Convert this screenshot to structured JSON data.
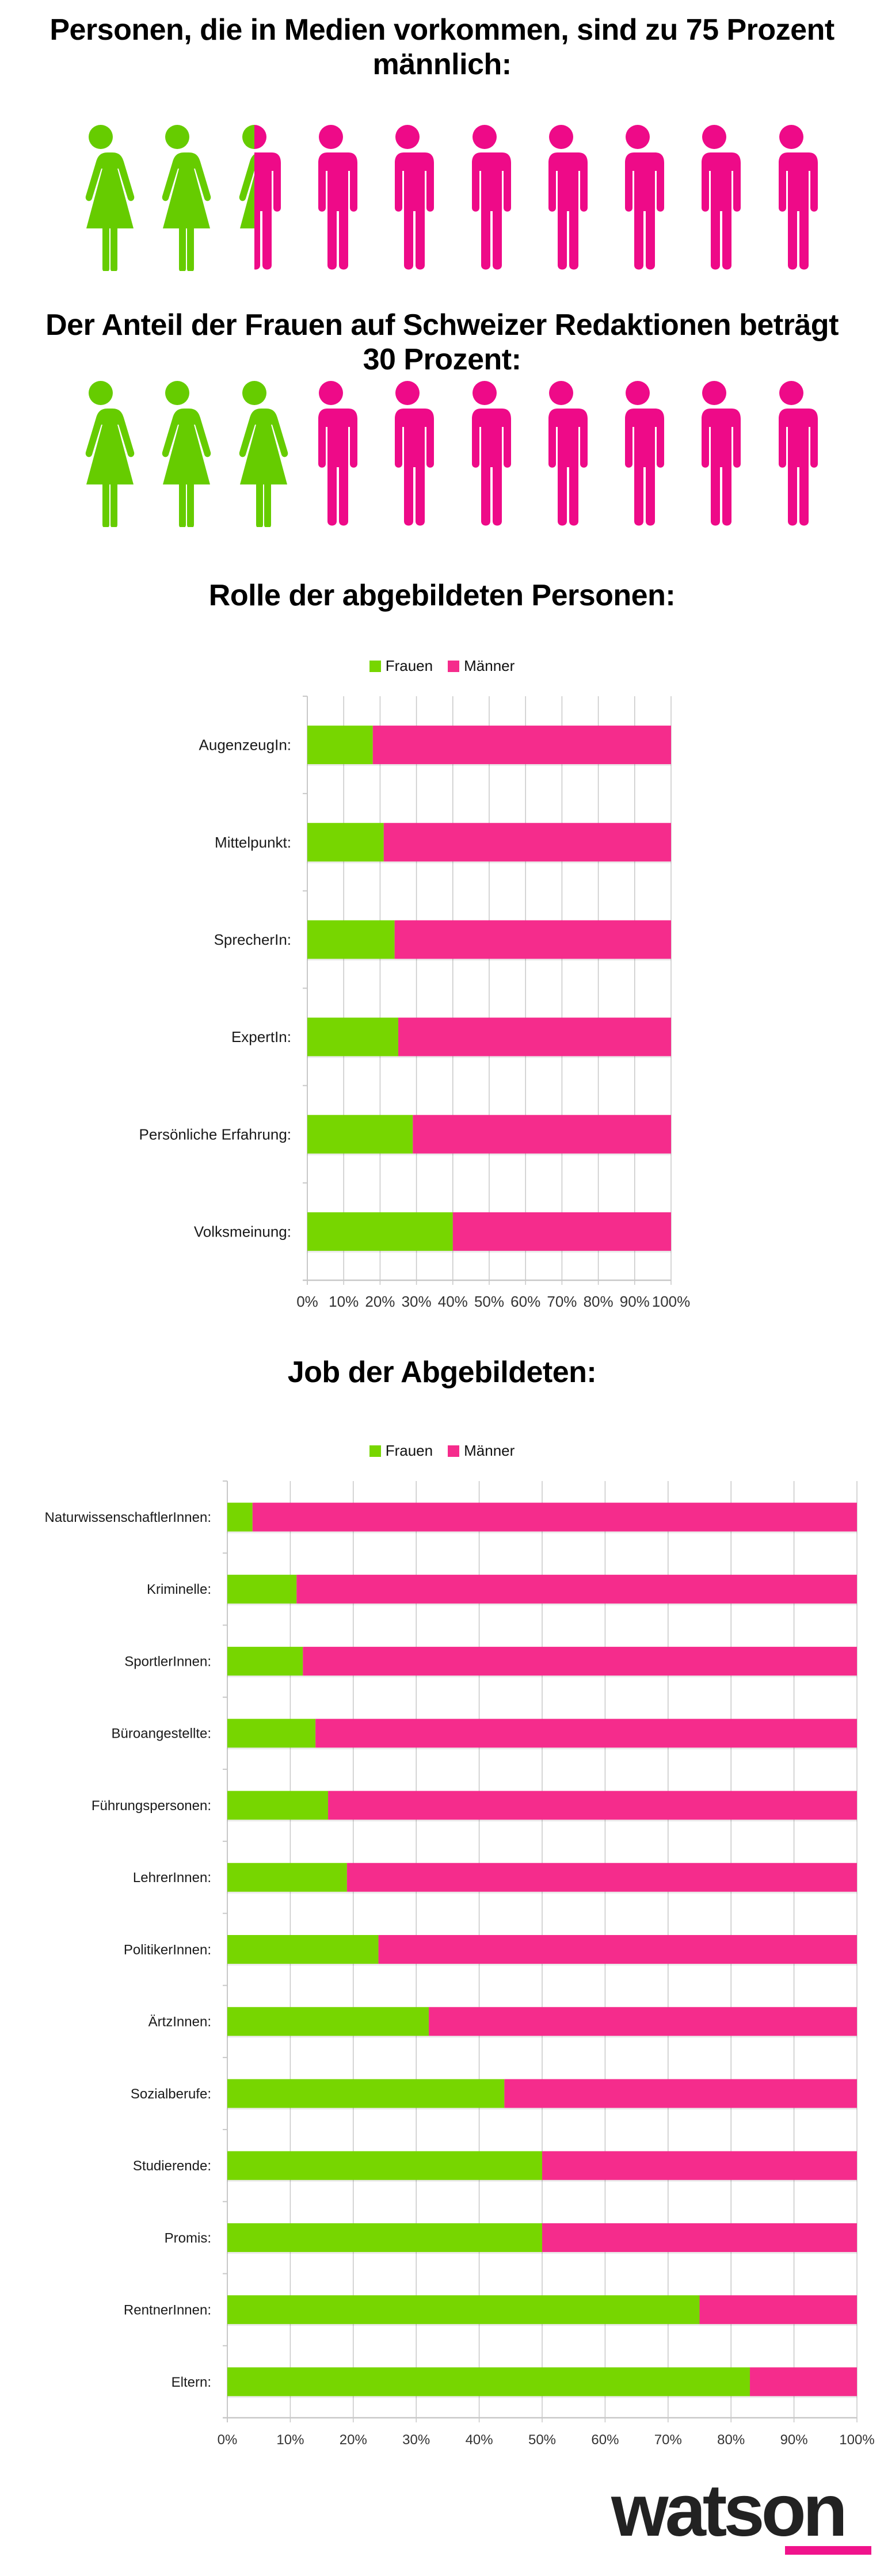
{
  "colors": {
    "figure_female": "#66CC00",
    "figure_male": "#EE0A88",
    "bar_female": "#77D600",
    "bar_male": "#F52C8C",
    "grid": "#C8C8C8",
    "logo_text": "#222222",
    "logo_accent": "#F0138C"
  },
  "section1": {
    "title_lines": [
      "Personen, die in Medien vorkommen, sind zu 75 Prozent",
      "männlich:"
    ],
    "pictogram": {
      "total_figures": 10,
      "female_share": 0.25,
      "male_share": 0.75,
      "female_figures": 2.5
    }
  },
  "section2": {
    "title_lines": [
      "Der Anteil der Frauen auf Schweizer Redaktionen beträgt",
      "30 Prozent:"
    ],
    "pictogram": {
      "total_figures": 10,
      "female_share": 0.3,
      "male_share": 0.7,
      "female_figures": 3
    }
  },
  "legend": {
    "female": "Frauen",
    "male": "Männer"
  },
  "chart_data": [
    {
      "type": "bar",
      "orientation": "horizontal",
      "stacked": "percent",
      "title": "Rolle der abgebildeten Personen:",
      "categories": [
        "AugenzeugIn:",
        "Mittelpunkt:",
        "SprecherIn:",
        "ExpertIn:",
        "Persönliche Erfahrung:",
        "Volksmeinung:"
      ],
      "series": [
        {
          "name": "Frauen",
          "values": [
            18,
            21,
            24,
            25,
            29,
            40
          ]
        },
        {
          "name": "Männer",
          "values": [
            82,
            79,
            76,
            75,
            71,
            60
          ]
        }
      ],
      "xlim": [
        0,
        100
      ],
      "xticks": [
        "0%",
        "10%",
        "20%",
        "30%",
        "40%",
        "50%",
        "60%",
        "70%",
        "80%",
        "90%",
        "100%"
      ],
      "xlabel": "",
      "ylabel": "",
      "grid": true,
      "legend_position": "top-center"
    },
    {
      "type": "bar",
      "orientation": "horizontal",
      "stacked": "percent",
      "title": "Job der Abgebildeten:",
      "categories": [
        "NaturwissenschaftlerInnen:",
        "Kriminelle:",
        "SportlerInnen:",
        "Büroangestellte:",
        "Führungspersonen:",
        "LehrerInnen:",
        "PolitikerInnen:",
        "ÄrtzInnen:",
        "Sozialberufe:",
        "Studierende:",
        "Promis:",
        "RentnerInnen:",
        "Eltern:"
      ],
      "series": [
        {
          "name": "Frauen",
          "values": [
            4,
            11,
            12,
            14,
            16,
            19,
            24,
            32,
            44,
            50,
            50,
            75,
            83
          ]
        },
        {
          "name": "Männer",
          "values": [
            96,
            89,
            88,
            86,
            84,
            81,
            76,
            68,
            56,
            50,
            50,
            25,
            17
          ]
        }
      ],
      "xlim": [
        0,
        100
      ],
      "xticks": [
        "0%",
        "10%",
        "20%",
        "30%",
        "40%",
        "50%",
        "60%",
        "70%",
        "80%",
        "90%",
        "100%"
      ],
      "xlabel": "",
      "ylabel": "",
      "grid": true,
      "legend_position": "top-center"
    }
  ],
  "logo": {
    "text": "watson"
  }
}
